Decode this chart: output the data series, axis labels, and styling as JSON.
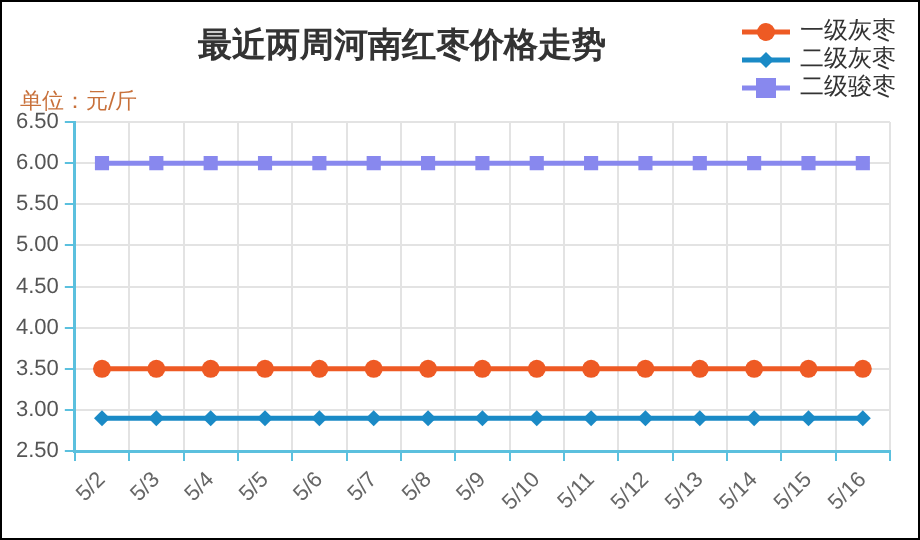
{
  "chart_data": {
    "type": "line",
    "title": "最近两周河南红枣价格走势",
    "ylabel": "单位：元/斤",
    "categories": [
      "5/2",
      "5/3",
      "5/4",
      "5/5",
      "5/6",
      "5/7",
      "5/8",
      "5/9",
      "5/10",
      "5/11",
      "5/12",
      "5/13",
      "5/14",
      "5/15",
      "5/16"
    ],
    "series": [
      {
        "name": "一级灰枣",
        "color": "#ee5a24",
        "marker": "circle",
        "values": [
          3.5,
          3.5,
          3.5,
          3.5,
          3.5,
          3.5,
          3.5,
          3.5,
          3.5,
          3.5,
          3.5,
          3.5,
          3.5,
          3.5,
          3.5
        ]
      },
      {
        "name": "二级灰枣",
        "color": "#1a8ac6",
        "marker": "diamond",
        "values": [
          2.9,
          2.9,
          2.9,
          2.9,
          2.9,
          2.9,
          2.9,
          2.9,
          2.9,
          2.9,
          2.9,
          2.9,
          2.9,
          2.9,
          2.9
        ]
      },
      {
        "name": "二级骏枣",
        "color": "#8888ee",
        "marker": "square",
        "values": [
          6.0,
          6.0,
          6.0,
          6.0,
          6.0,
          6.0,
          6.0,
          6.0,
          6.0,
          6.0,
          6.0,
          6.0,
          6.0,
          6.0,
          6.0
        ]
      }
    ],
    "ylim": [
      2.5,
      6.5
    ],
    "yticks": [
      {
        "value": 2.5,
        "label": "2.50"
      },
      {
        "value": 3.0,
        "label": "3.00"
      },
      {
        "value": 3.5,
        "label": "3.50"
      },
      {
        "value": 4.0,
        "label": "4.00"
      },
      {
        "value": 4.5,
        "label": "4.50"
      },
      {
        "value": 5.0,
        "label": "5.00"
      },
      {
        "value": 5.5,
        "label": "5.50"
      },
      {
        "value": 6.0,
        "label": "6.00"
      },
      {
        "value": 6.5,
        "label": "6.50"
      }
    ],
    "grid": true,
    "legend": "top right",
    "line_style": "solid"
  }
}
